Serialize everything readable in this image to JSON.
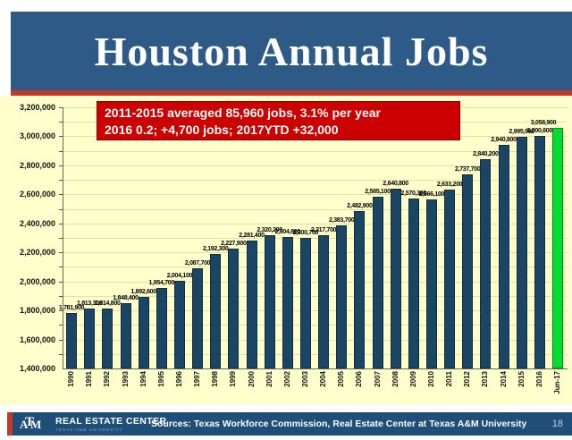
{
  "header": {
    "title": "Houston Annual Jobs"
  },
  "annotation": {
    "line1": "2011-2015 averaged 85,960 jobs, 3.1% per year",
    "line2": "2016 0.2; +4,700 jobs; 2017YTD +32,000"
  },
  "chart_data": {
    "type": "bar",
    "title": "Houston Annual Jobs",
    "categories": [
      "1990",
      "1991",
      "1992",
      "1993",
      "1994",
      "1995",
      "1996",
      "1997",
      "1998",
      "1999",
      "2000",
      "2001",
      "2002",
      "2003",
      "2004",
      "2005",
      "2006",
      "2007",
      "2008",
      "2009",
      "2010",
      "2011",
      "2012",
      "2013",
      "2014",
      "2015",
      "2016",
      "Jun-17"
    ],
    "values": [
      1781900,
      1813300,
      1814800,
      1848400,
      1892600,
      1954700,
      2004100,
      2087700,
      2192300,
      2227900,
      2281400,
      2320200,
      2304600,
      2300700,
      2317700,
      2383700,
      2482900,
      2585100,
      2640800,
      2570300,
      2566100,
      2633200,
      2737700,
      2840200,
      2940800,
      2995900,
      3000600,
      3058900
    ],
    "ylim": [
      1400000,
      3200000
    ],
    "ytick_step": 200000,
    "grid_step": 100000,
    "grid": "on",
    "legend": "none",
    "xlabel": "",
    "ylabel": "",
    "label_format": "thousands-comma",
    "highlight_index": 27
  },
  "footer": {
    "logo_a": "A",
    "logo_t": "T",
    "logo_m": "M",
    "logo_title": "REAL ESTATE CENTER",
    "logo_subtitle": "TEXAS A&M UNIVERSITY",
    "sources": "Sources: Texas Workforce Commission, Real Estate Center at Texas A&M University",
    "page_number": "18"
  },
  "colors": {
    "banner_blue": "#2d5a87",
    "footer_blue": "#1f4e79",
    "accent_red": "#c0392b",
    "annotation_bg": "#cc0000",
    "annotation_text": "#ffffff",
    "chart_bg": "#ffffcc",
    "grid_line": "#e0e0aa",
    "bar_color": "#1b4565",
    "highlight_color": "#00de32"
  }
}
